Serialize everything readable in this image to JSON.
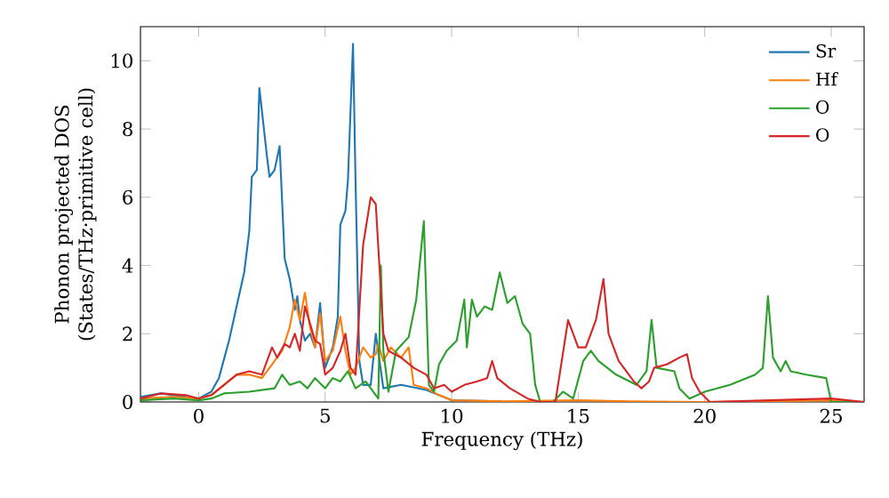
{
  "chart_data": {
    "type": "line",
    "xlabel": "Frequency (THz)",
    "ylabel": "Phonon projected DOS\n(States/THz·primitive cell)",
    "xlim": [
      -2.3,
      26.3
    ],
    "ylim": [
      0,
      11
    ],
    "xticks": [
      0,
      5,
      10,
      15,
      20,
      25
    ],
    "yticks": [
      0,
      2,
      4,
      6,
      8,
      10
    ],
    "legend": "top right",
    "grid": false,
    "series": [
      {
        "name": "Sr",
        "color": "#1f77b4",
        "x": [
          -2.3,
          -1.5,
          -0.5,
          0,
          0.5,
          0.8,
          1.2,
          1.5,
          1.8,
          2.0,
          2.1,
          2.3,
          2.4,
          2.7,
          2.8,
          3.0,
          3.2,
          3.4,
          3.6,
          3.8,
          3.9,
          4.0,
          4.2,
          4.4,
          4.6,
          4.8,
          5.0,
          5.3,
          5.5,
          5.6,
          5.8,
          5.9,
          6.1,
          6.2,
          6.35,
          6.5,
          6.8,
          7.0,
          7.3,
          8.0,
          9.0,
          9.5,
          10.0,
          12.0
        ],
        "values": [
          0.15,
          0.25,
          0.15,
          0.1,
          0.3,
          0.7,
          1.8,
          2.8,
          3.8,
          5.0,
          6.6,
          6.8,
          9.2,
          7.2,
          6.6,
          6.8,
          7.5,
          4.2,
          3.6,
          2.7,
          3.1,
          2.4,
          1.8,
          2.0,
          1.6,
          2.9,
          1.0,
          1.6,
          2.5,
          5.2,
          5.6,
          6.5,
          10.5,
          6.5,
          1.2,
          0.5,
          0.5,
          2.0,
          0.4,
          0.5,
          0.35,
          0.2,
          0.05,
          0.02
        ]
      },
      {
        "name": "Hf",
        "color": "#ff7f0e",
        "x": [
          -2.3,
          -1,
          0,
          0.5,
          1,
          1.5,
          2,
          2.5,
          3,
          3.3,
          3.6,
          3.8,
          4.0,
          4.2,
          4.4,
          4.6,
          4.8,
          5.0,
          5.3,
          5.6,
          5.8,
          6.0,
          6.2,
          6.5,
          6.8,
          7.0,
          7.1,
          7.3,
          7.6,
          8.0,
          8.3,
          8.5,
          9,
          9.5,
          10,
          12,
          15,
          17,
          20,
          25,
          26.3
        ],
        "values": [
          0.1,
          0.15,
          0.1,
          0.2,
          0.5,
          0.8,
          0.8,
          0.7,
          1.2,
          1.5,
          2.2,
          3.0,
          2.4,
          3.2,
          2.2,
          1.6,
          2.6,
          1.2,
          1.5,
          2.5,
          1.5,
          0.8,
          1.0,
          1.6,
          1.3,
          1.4,
          1.7,
          1.2,
          1.6,
          1.3,
          1.6,
          0.5,
          0.4,
          0.2,
          0.05,
          0.02,
          0.05,
          0.02,
          0,
          0.05,
          0
        ]
      },
      {
        "name": "O",
        "color": "#2ca02c",
        "x": [
          -2.3,
          -1,
          0,
          0.5,
          1,
          2,
          3,
          3.3,
          3.6,
          4,
          4.3,
          4.6,
          5,
          5.3,
          5.6,
          5.9,
          6.2,
          6.6,
          7.0,
          7.1,
          7.2,
          7.3,
          7.5,
          7.8,
          8.3,
          8.6,
          8.9,
          9.1,
          9.3,
          9.5,
          9.8,
          10.2,
          10.5,
          10.6,
          10.8,
          11.0,
          11.3,
          11.6,
          11.9,
          12.2,
          12.5,
          12.8,
          13.1,
          13.3,
          13.5,
          14.0,
          14.4,
          14.8,
          15.2,
          15.5,
          15.8,
          16.5,
          17.3,
          17.7,
          17.9,
          18.1,
          18.8,
          19.0,
          19.4,
          20,
          21,
          22,
          22.3,
          22.5,
          22.7,
          23.0,
          23.2,
          23.4,
          24,
          24.8,
          25.0,
          26.3
        ],
        "values": [
          0.05,
          0.1,
          0.05,
          0.1,
          0.25,
          0.3,
          0.4,
          0.8,
          0.5,
          0.6,
          0.4,
          0.7,
          0.4,
          0.7,
          0.6,
          0.9,
          0.4,
          0.6,
          0.2,
          0.1,
          4.0,
          1.5,
          0.3,
          1.5,
          1.9,
          3.0,
          5.3,
          0.5,
          0.3,
          1.1,
          1.5,
          1.8,
          3.0,
          1.6,
          3.0,
          2.5,
          2.8,
          2.7,
          3.8,
          2.9,
          3.1,
          2.3,
          2.0,
          0.5,
          0,
          0,
          0.3,
          0.1,
          1.2,
          1.5,
          1.2,
          0.8,
          0.5,
          0.9,
          2.4,
          1.0,
          0.9,
          0.4,
          0.1,
          0.3,
          0.5,
          0.8,
          1.0,
          3.1,
          1.3,
          0.9,
          1.2,
          0.9,
          0.8,
          0.7,
          0,
          0
        ]
      },
      {
        "name": "O",
        "color": "#d62728",
        "x": [
          -2.3,
          -1.5,
          -0.5,
          0,
          0.5,
          1.0,
          1.5,
          2,
          2.5,
          2.9,
          3.1,
          3.4,
          3.6,
          3.8,
          4.0,
          4.2,
          4.4,
          4.6,
          4.8,
          5.0,
          5.3,
          5.6,
          5.8,
          6.0,
          6.2,
          6.5,
          6.8,
          7.0,
          7.3,
          7.5,
          8.0,
          8.5,
          9.0,
          9.3,
          9.7,
          10.0,
          10.5,
          11.0,
          11.4,
          11.6,
          11.8,
          12.3,
          13.0,
          13.5,
          14.1,
          14.6,
          15.0,
          15.3,
          15.7,
          16.0,
          16.2,
          16.6,
          17.2,
          17.5,
          17.8,
          18.0,
          18.5,
          19.0,
          19.3,
          19.5,
          19.8,
          20.2,
          25,
          26.3
        ],
        "values": [
          0.1,
          0.25,
          0.2,
          0.1,
          0.2,
          0.5,
          0.8,
          0.9,
          0.8,
          1.6,
          1.3,
          1.7,
          1.6,
          2.0,
          1.5,
          2.8,
          2.3,
          1.8,
          1.7,
          0.8,
          1.0,
          1.5,
          2.0,
          1.0,
          0.8,
          4.6,
          6.0,
          5.8,
          2.0,
          1.5,
          1.3,
          1.0,
          0.8,
          0.4,
          0.5,
          0.3,
          0.5,
          0.6,
          0.7,
          1.2,
          0.7,
          0.4,
          0.1,
          0,
          0,
          2.4,
          1.6,
          1.6,
          2.4,
          3.6,
          2.0,
          1.2,
          0.6,
          0.4,
          0.6,
          1.0,
          1.1,
          1.3,
          1.4,
          0.7,
          0.3,
          0,
          0.1,
          0
        ]
      }
    ]
  }
}
